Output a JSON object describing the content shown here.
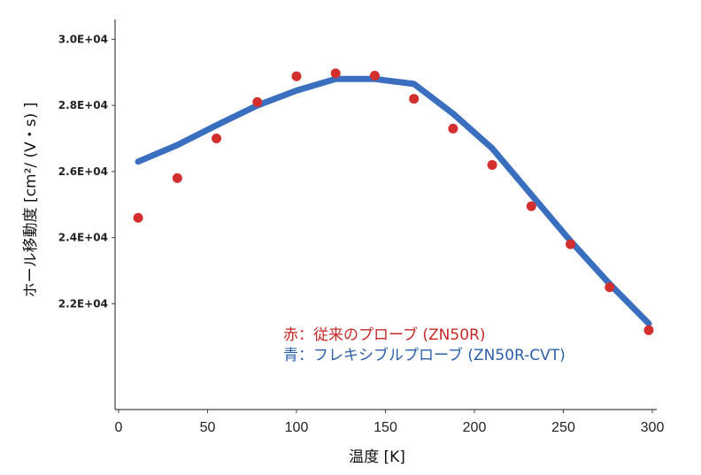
{
  "chart_data": {
    "type": "line",
    "xlabel": "温度 [K]",
    "ylabel": "ホール移動度 [cm²/ (V・s) ]",
    "xlim": [
      0,
      300
    ],
    "ylim": [
      18800,
      30600
    ],
    "x_ticks": [
      "0",
      "50",
      "100",
      "150",
      "200",
      "250",
      "300"
    ],
    "y_ticks": [
      "3.0E+04",
      "2.8E+04",
      "2.6E+04",
      "2.4E+04",
      "2.2E+04"
    ],
    "grid": false,
    "legend_placement": "center-right",
    "series": [
      {
        "name": "赤：従来のプローブ (ZN50R)",
        "style": "scatter",
        "color": "#d32f2f",
        "x": [
          11,
          33,
          55,
          78,
          100,
          122,
          144,
          166,
          188,
          210,
          232,
          254,
          276,
          298
        ],
        "y": [
          24600,
          25800,
          27000,
          28100,
          28880,
          28970,
          28900,
          28200,
          27300,
          26200,
          24950,
          23800,
          22500,
          21200
        ]
      },
      {
        "name": "青：フレキシブルプローブ (ZN50R-CVT)",
        "style": "line",
        "color": "#3a6fc0",
        "x": [
          11,
          33,
          55,
          78,
          100,
          122,
          144,
          166,
          188,
          210,
          232,
          254,
          276,
          298
        ],
        "y": [
          26300,
          26800,
          27400,
          28000,
          28450,
          28800,
          28800,
          28650,
          27750,
          26700,
          25300,
          23900,
          22600,
          21400
        ]
      }
    ]
  }
}
